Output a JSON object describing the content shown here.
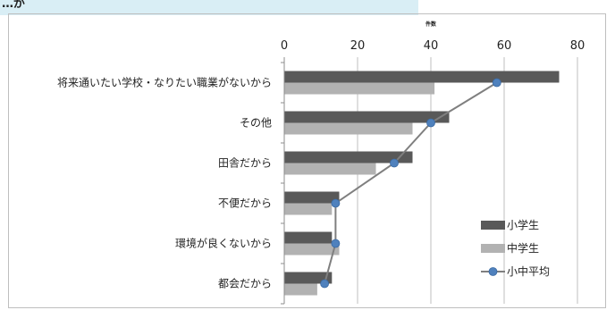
{
  "header": {
    "text": "…が"
  },
  "chart_data": {
    "type": "bar",
    "orientation": "horizontal",
    "unit_label": "件数",
    "xlim": [
      0,
      80
    ],
    "x_ticks": [
      0,
      20,
      40,
      60,
      80
    ],
    "categories": [
      "将来通いたい学校・なりたい職業がないから",
      "その他",
      "田舎だから",
      "不便だから",
      "環境が良くないから",
      "都会だから"
    ],
    "series": [
      {
        "name": "小学生",
        "type": "bar",
        "color": "#595959",
        "values": [
          75,
          45,
          35,
          15,
          13,
          13
        ]
      },
      {
        "name": "中学生",
        "type": "bar",
        "color": "#b2b2b2",
        "values": [
          41,
          35,
          25,
          13,
          15,
          9
        ]
      },
      {
        "name": "小中平均",
        "type": "line",
        "color": "#7f7f7f",
        "marker_color": "#4f81bd",
        "values": [
          58,
          40,
          30,
          14,
          14,
          11
        ]
      }
    ],
    "legend": {
      "position": "right"
    },
    "grid": true
  }
}
